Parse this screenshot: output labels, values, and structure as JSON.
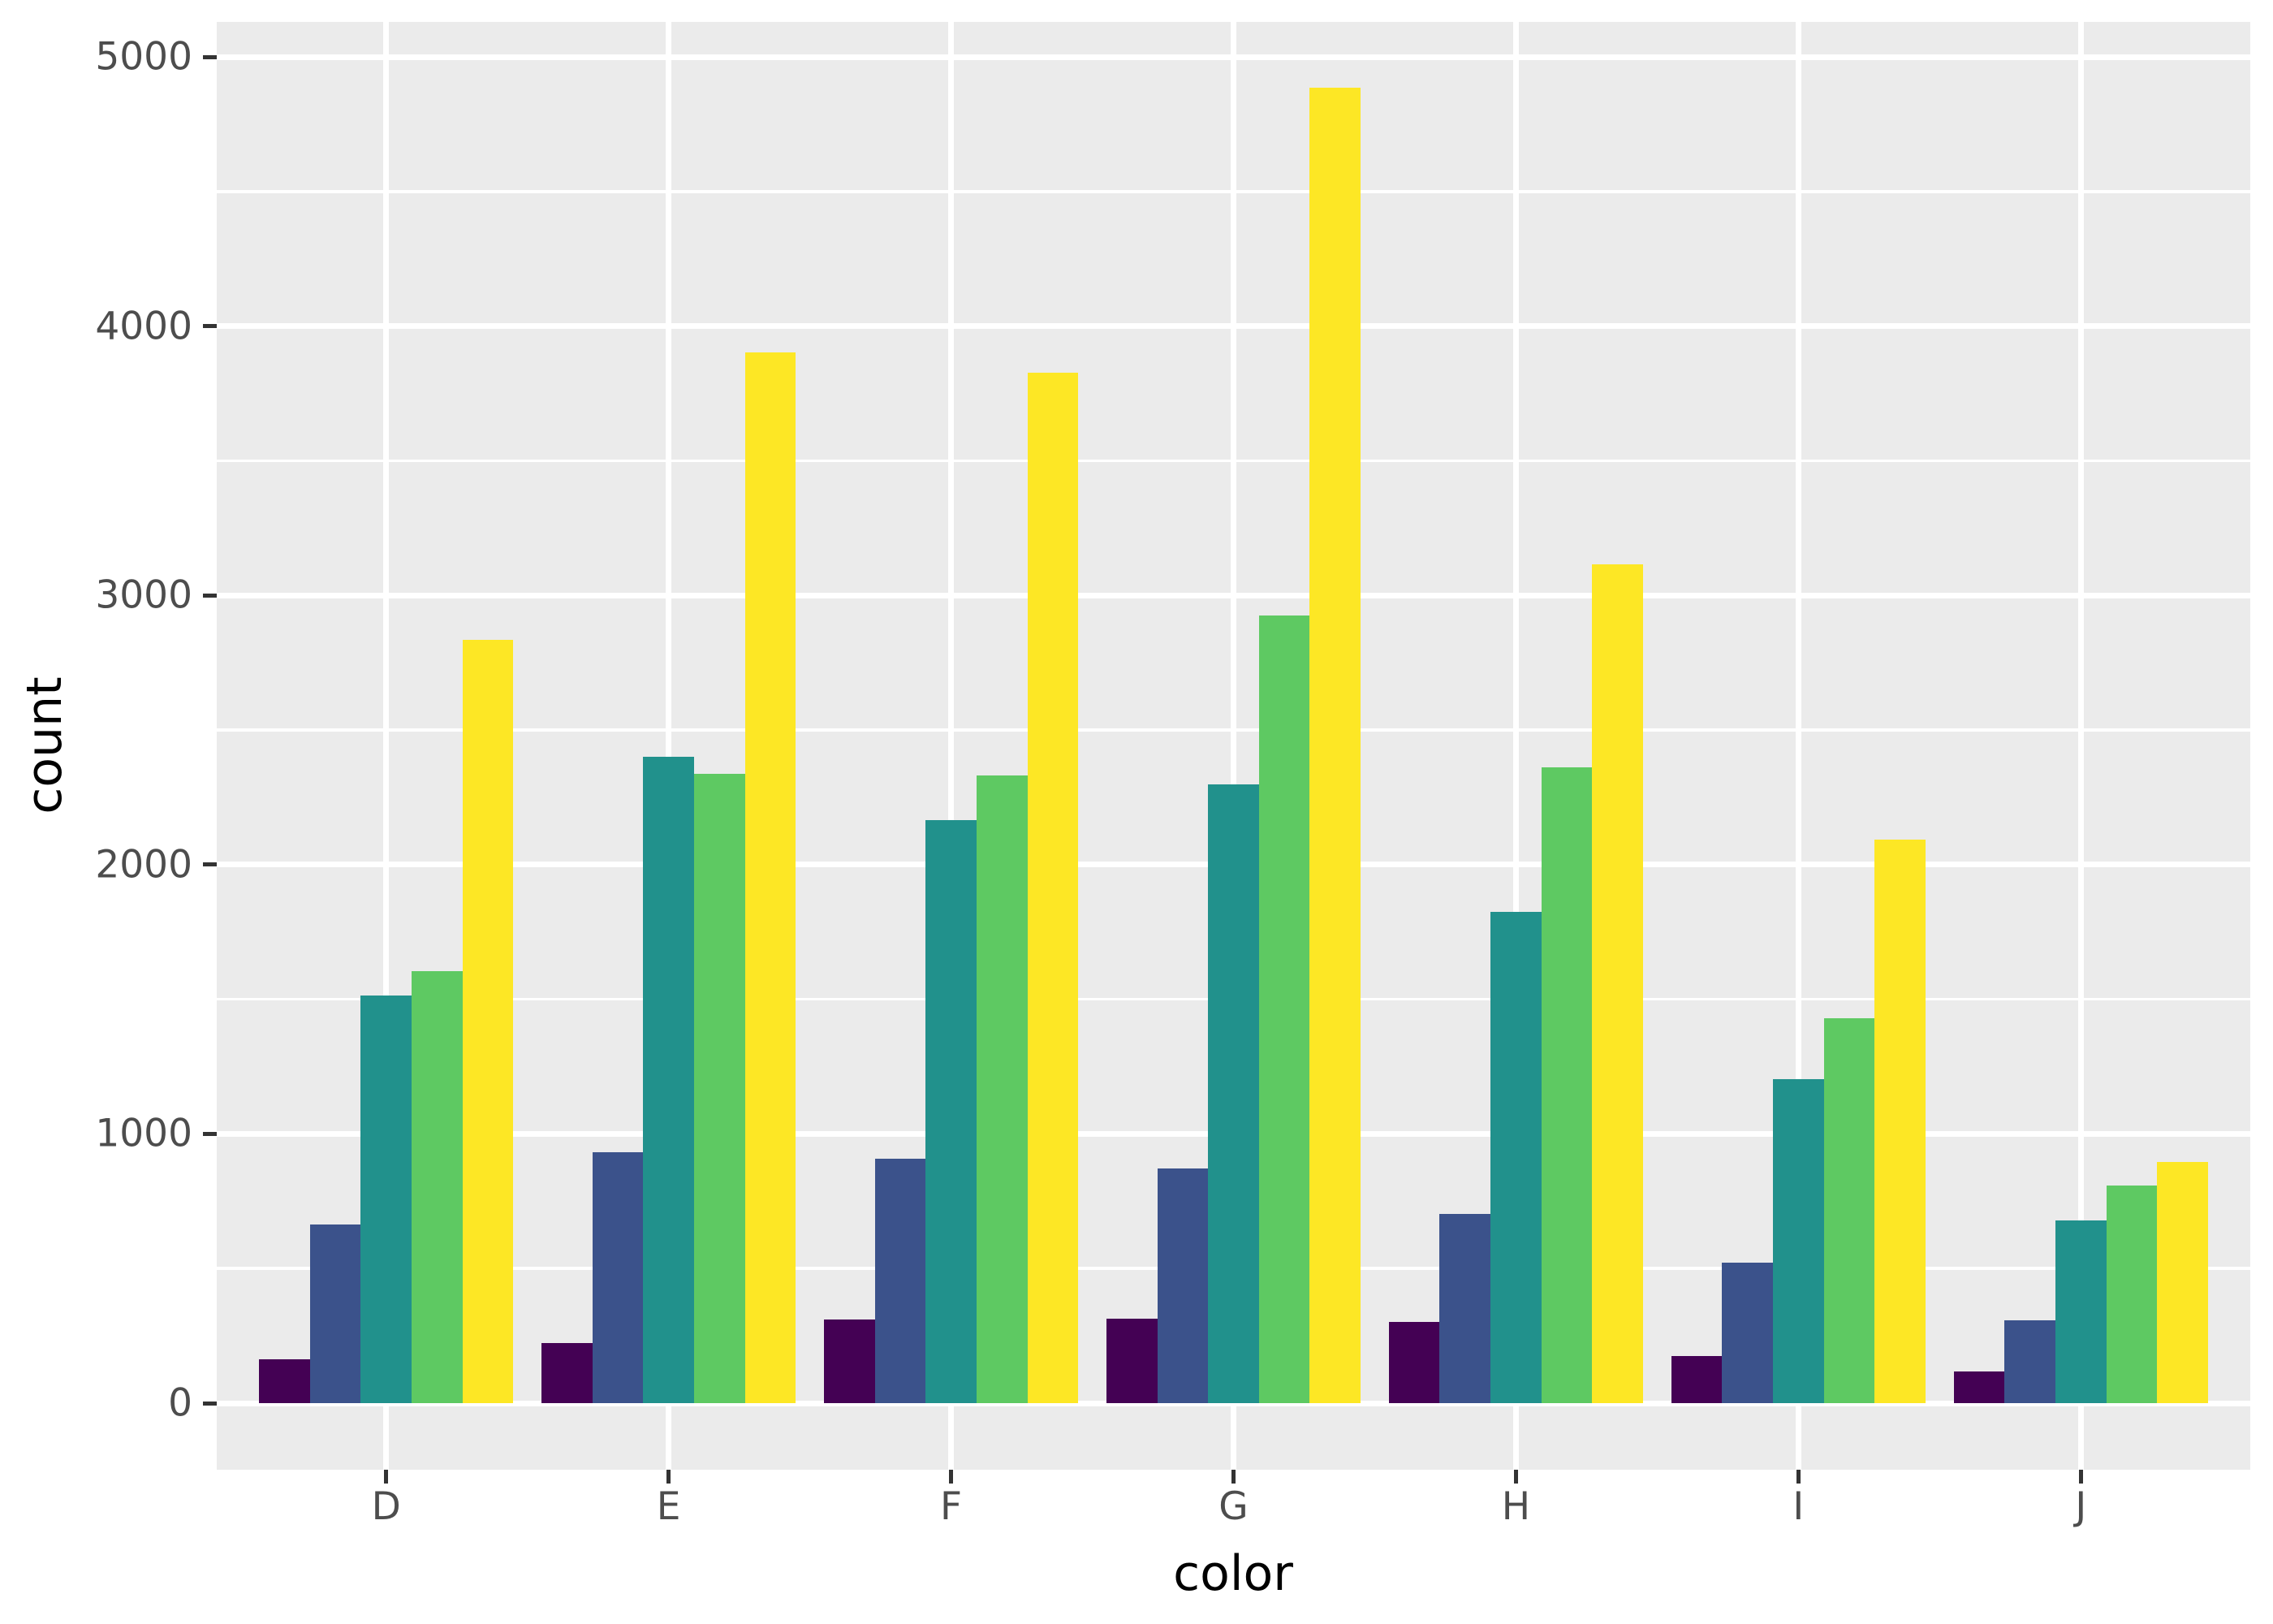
{
  "figure": {
    "background": "#FFFFFF",
    "panel_background": "#EBEBEB",
    "grid_color": "#FFFFFF",
    "tick_mark_color": "#333333",
    "tick_label_color": "#4D4D4D",
    "axis_title_color": "#000000"
  },
  "chart_data": {
    "type": "bar",
    "mode": "grouped-dodge",
    "title": "",
    "xlabel": "color",
    "ylabel": "count",
    "categories": [
      "D",
      "E",
      "F",
      "G",
      "H",
      "I",
      "J"
    ],
    "series": [
      {
        "name": "purple",
        "color": "#440154",
        "values": [
          163,
          224,
          312,
          314,
          303,
          175,
          119
        ]
      },
      {
        "name": "blue",
        "color": "#3B528B",
        "values": [
          662,
          933,
          909,
          871,
          702,
          522,
          307
        ]
      },
      {
        "name": "teal",
        "color": "#21918C",
        "values": [
          1513,
          2400,
          2164,
          2299,
          1824,
          1204,
          678
        ]
      },
      {
        "name": "green",
        "color": "#5EC962",
        "values": [
          1603,
          2337,
          2331,
          2924,
          2360,
          1428,
          808
        ]
      },
      {
        "name": "yellow",
        "color": "#FDE725",
        "values": [
          2834,
          3903,
          3826,
          4884,
          3115,
          2093,
          896
        ]
      }
    ],
    "ylim": [
      0,
      5000
    ],
    "yticks": [
      0,
      1000,
      2000,
      3000,
      4000,
      5000
    ],
    "yticks_minor": [
      500,
      1500,
      2500,
      3500,
      4500
    ],
    "grid": true,
    "legend_position": "none"
  }
}
